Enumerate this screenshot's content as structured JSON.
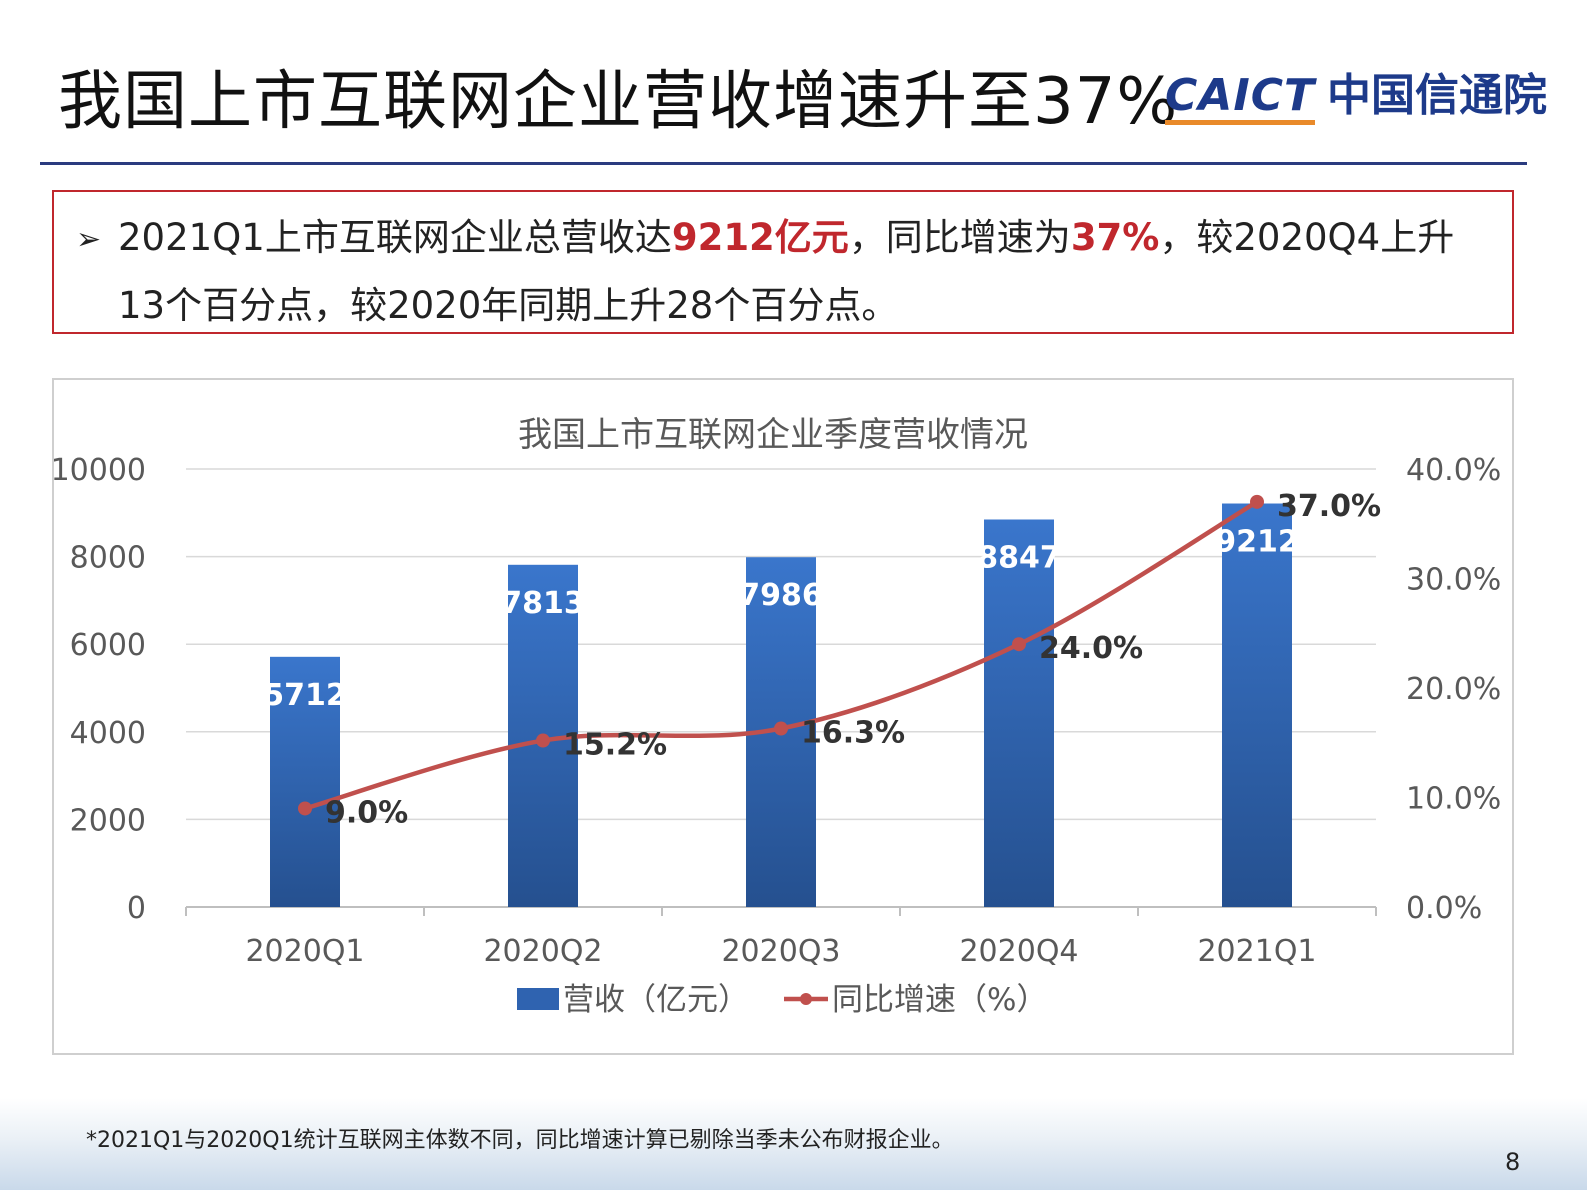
{
  "header": {
    "title": "我国上市互联网企业营收增速升至37%",
    "logo_en": "CAICT",
    "logo_cn": "中国信通院"
  },
  "summary": {
    "bullet_icon": "arrow-bullet",
    "text_1": "2021Q1上市互联网企业总营收达",
    "highlight_1": "9212亿元",
    "text_2": "，同比增速为",
    "highlight_2": "37%",
    "text_3": "，较2020Q4上升13个百分点，较2020年同期上升28个百分点。",
    "highlight_color": "#c0272d"
  },
  "chart_data": {
    "type": "bar",
    "title": "我国上市互联网企业季度营收情况",
    "categories": [
      "2020Q1",
      "2020Q2",
      "2020Q3",
      "2020Q4",
      "2021Q1"
    ],
    "series": [
      {
        "name": "营收（亿元）",
        "type": "bar",
        "axis": "left",
        "values": [
          5712,
          7813,
          7986,
          8847,
          9212
        ],
        "labels": [
          "5712",
          "7813",
          "7986",
          "8847",
          "9212"
        ],
        "color": "#2f63b0"
      },
      {
        "name": "同比增速（%）",
        "type": "line",
        "axis": "right",
        "values": [
          9.0,
          15.2,
          16.3,
          24.0,
          37.0
        ],
        "labels": [
          "9.0%",
          "15.2%",
          "16.3%",
          "24.0%",
          "37.0%"
        ],
        "color": "#c0504d"
      }
    ],
    "y_left": {
      "ylim": [
        0,
        10000
      ],
      "ticks": [
        "0",
        "2000",
        "4000",
        "6000",
        "8000",
        "10000"
      ]
    },
    "y_right": {
      "ylim": [
        0,
        40
      ],
      "ticks": [
        "0.0%",
        "10.0%",
        "20.0%",
        "30.0%",
        "40.0%"
      ]
    },
    "grid": true,
    "legend": "bottom-center"
  },
  "footnote": "*2021Q1与2020Q1统计互联网主体数不同，同比增速计算已剔除当季未公布财报企业。",
  "page_number": "8"
}
